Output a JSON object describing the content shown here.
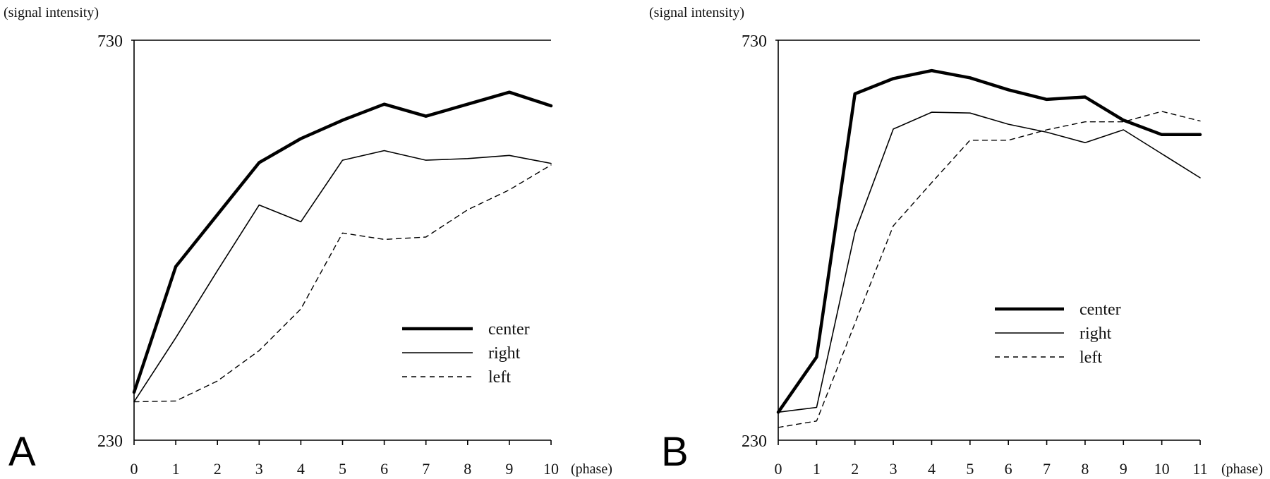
{
  "chart_data": [
    {
      "type": "line",
      "panel_label": "A",
      "ylabel": "(signal intensity)",
      "xlabel": "(phase)",
      "ylim": [
        230,
        730
      ],
      "ytick_labels": [
        "730",
        "230"
      ],
      "x": [
        0,
        1,
        2,
        3,
        4,
        5,
        6,
        7,
        8,
        9,
        10
      ],
      "top_reference_line": 730,
      "legend_position": "lower-right",
      "series": [
        {
          "name": "center",
          "style": "thick",
          "values": [
            290,
            447,
            512,
            577,
            607,
            630,
            650,
            635,
            650,
            665,
            648
          ]
        },
        {
          "name": "right",
          "style": "thin",
          "values": [
            278,
            358,
            442,
            524,
            503,
            580,
            592,
            580,
            582,
            586,
            576
          ]
        },
        {
          "name": "left",
          "style": "dashed",
          "values": [
            278,
            279,
            304,
            342,
            394,
            489,
            481,
            484,
            518,
            543,
            574
          ]
        }
      ]
    },
    {
      "type": "line",
      "panel_label": "B",
      "ylabel": "(signal intensity)",
      "xlabel": "(phase)",
      "ylim": [
        230,
        730
      ],
      "ytick_labels": [
        "730",
        "230"
      ],
      "x": [
        0,
        1,
        2,
        3,
        4,
        5,
        6,
        7,
        8,
        9,
        10,
        11
      ],
      "top_reference_line": 730,
      "legend_position": "center-right",
      "series": [
        {
          "name": "center",
          "style": "thick",
          "values": [
            265,
            334,
            663,
            682,
            692,
            683,
            668,
            656,
            659,
            630,
            612,
            612
          ]
        },
        {
          "name": "right",
          "style": "thin",
          "values": [
            265,
            271,
            490,
            619,
            640,
            639,
            625,
            615,
            602,
            618,
            588,
            558
          ]
        },
        {
          "name": "left",
          "style": "dashed",
          "values": [
            246,
            254,
            376,
            498,
            552,
            605,
            605,
            618,
            628,
            628,
            641,
            629
          ]
        }
      ]
    }
  ]
}
